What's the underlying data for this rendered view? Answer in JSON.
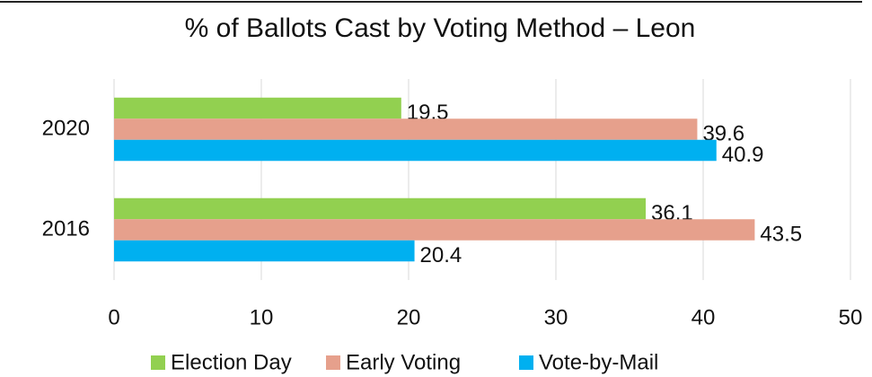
{
  "chart_data": {
    "type": "bar",
    "orientation": "horizontal",
    "title": "% of Ballots Cast by Voting Method – Leon",
    "categories": [
      "2020",
      "2016"
    ],
    "series": [
      {
        "name": "Election Day",
        "color": "#92d050",
        "values": [
          19.5,
          36.1
        ]
      },
      {
        "name": "Early Voting",
        "color": "#e6a08c",
        "values": [
          39.6,
          43.5
        ]
      },
      {
        "name": "Vote-by-Mail",
        "color": "#00b0f0",
        "values": [
          40.9,
          20.4
        ]
      }
    ],
    "xlim": [
      0,
      50
    ],
    "xticks": [
      0,
      10,
      20,
      30,
      40,
      50
    ],
    "grid": true,
    "legend": "bottom"
  }
}
